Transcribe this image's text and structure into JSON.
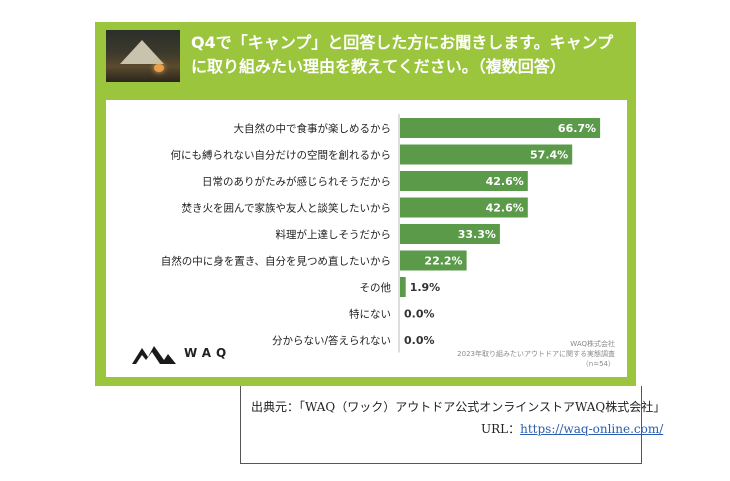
{
  "header": {
    "title": "Q4で「キャンプ」と回答した方にお聞きします。キャンプ\nに取り組みたい理由を教えてください。（複数回答）"
  },
  "chart_data": {
    "type": "bar",
    "orientation": "horizontal",
    "categories": [
      "大自然の中で食事が楽しめるから",
      "何にも縛られない自分だけの空間を創れるから",
      "日常のありがたみが感じられそうだから",
      "焚き火を囲んで家族や友人と談笑したいから",
      "料理が上達しそうだから",
      "自然の中に身を置き、自分を見つめ直したいから",
      "その他",
      "特にない",
      "分からない/答えられない"
    ],
    "values": [
      66.7,
      57.4,
      42.6,
      42.6,
      33.3,
      22.2,
      1.9,
      0.0,
      0.0
    ],
    "value_labels": [
      "66.7%",
      "57.4%",
      "42.6%",
      "42.6%",
      "33.3%",
      "22.2%",
      "1.9%",
      "0.0%",
      "0.0%"
    ],
    "xlim": [
      0,
      100
    ],
    "bar_color": "#5a9a48",
    "label_color_inside": "#ffffff",
    "label_color_outside": "#333333"
  },
  "footer": {
    "brand": "WAQ",
    "note_lines": [
      "WAQ株式会社",
      "2023年取り組みたいアウトドアに関する実態調査",
      "（n=54）"
    ]
  },
  "source": {
    "line1": "出典元：「WAQ（ワック）アウトドア公式オンラインストアWAQ株式会社」",
    "url_label": "URL：",
    "url": "https://waq-online.com/"
  },
  "colors": {
    "card": "#9bc53d",
    "bar": "#5a9a48"
  }
}
